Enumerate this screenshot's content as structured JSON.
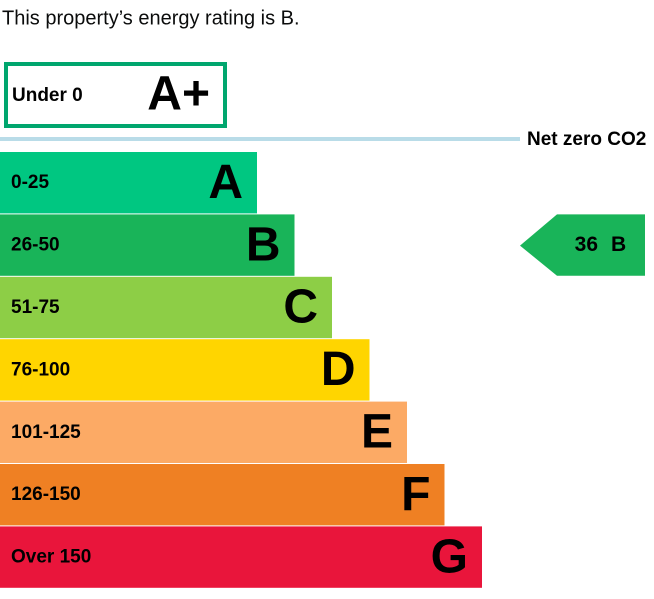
{
  "header": {
    "text": "This property’s energy rating is B."
  },
  "top_band": {
    "range": "Under 0",
    "letter": "A+",
    "color": "#00a66e"
  },
  "net_zero": {
    "label": "Net zero CO2"
  },
  "bands": [
    {
      "range": "0-25",
      "letter": "A",
      "color": "#00c781"
    },
    {
      "range": "26-50",
      "letter": "B",
      "color": "#19b459"
    },
    {
      "range": "51-75",
      "letter": "C",
      "color": "#8dce46"
    },
    {
      "range": "76-100",
      "letter": "D",
      "color": "#ffd500"
    },
    {
      "range": "101-125",
      "letter": "E",
      "color": "#fcaa65"
    },
    {
      "range": "126-150",
      "letter": "F",
      "color": "#ef8023"
    },
    {
      "range": "Over 150",
      "letter": "G",
      "color": "#e9153b"
    }
  ],
  "current": {
    "score": 36,
    "letter": "B"
  }
}
